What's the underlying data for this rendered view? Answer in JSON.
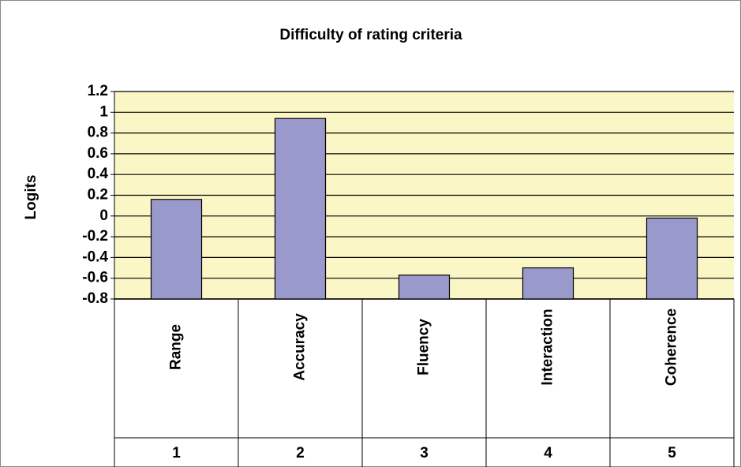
{
  "chart_data": {
    "type": "bar",
    "title": "Difficulty of rating criteria",
    "y_label": "Logits",
    "categories": [
      "Range",
      "Accuracy",
      "Fluency",
      "Interaction",
      "Coherence"
    ],
    "category_numbers": [
      "1",
      "2",
      "3",
      "4",
      "5"
    ],
    "values": [
      0.16,
      0.94,
      -0.57,
      -0.5,
      -0.02
    ],
    "color": "#9999cc",
    "ylim": [
      -0.8,
      1.2
    ],
    "yticks": [
      -0.8,
      -0.6,
      -0.4,
      -0.2,
      0,
      0.2,
      0.4,
      0.6,
      0.8,
      1,
      1.2
    ],
    "grid": true
  }
}
